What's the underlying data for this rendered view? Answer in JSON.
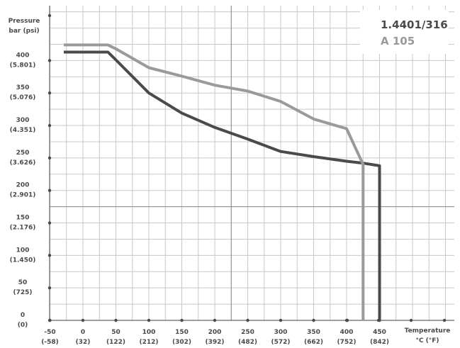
{
  "chart_data": {
    "type": "line",
    "ylabel": [
      "Pressure",
      "bar (psi)"
    ],
    "xlabel": [
      "Temperature",
      "°C (°F)"
    ],
    "xlim": [
      -50,
      450
    ],
    "ylim": [
      0,
      420
    ],
    "x_ticks": [
      {
        "v": -50,
        "l1": "-50",
        "l2": "(-58)"
      },
      {
        "v": 0,
        "l1": "0",
        "l2": "(32)"
      },
      {
        "v": 50,
        "l1": "50",
        "l2": "(122)"
      },
      {
        "v": 100,
        "l1": "100",
        "l2": "(212)"
      },
      {
        "v": 150,
        "l1": "150",
        "l2": "(302)"
      },
      {
        "v": 200,
        "l1": "200",
        "l2": "(392)"
      },
      {
        "v": 250,
        "l1": "250",
        "l2": "(482)"
      },
      {
        "v": 300,
        "l1": "300",
        "l2": "(572)"
      },
      {
        "v": 350,
        "l1": "350",
        "l2": "(662)"
      },
      {
        "v": 400,
        "l1": "400",
        "l2": "(752)"
      },
      {
        "v": 450,
        "l1": "450",
        "l2": "(842)"
      }
    ],
    "y_ticks": [
      {
        "v": 0,
        "l1": "0",
        "l2": "(0)"
      },
      {
        "v": 50,
        "l1": "50",
        "l2": "(725)"
      },
      {
        "v": 100,
        "l1": "100",
        "l2": "(1.450)"
      },
      {
        "v": 150,
        "l1": "150",
        "l2": "(2.176)"
      },
      {
        "v": 200,
        "l1": "200",
        "l2": "(2.901)"
      },
      {
        "v": 250,
        "l1": "250",
        "l2": "(3.626)"
      },
      {
        "v": 300,
        "l1": "300",
        "l2": "(4.351)"
      },
      {
        "v": 350,
        "l1": "350",
        "l2": "(5.076)"
      },
      {
        "v": 400,
        "l1": "400",
        "l2": "(5.801)"
      }
    ],
    "series": [
      {
        "name": "1.4401/316",
        "color": "#4a4a4a",
        "x": [
          -29,
          38,
          50,
          100,
          150,
          200,
          250,
          300,
          350,
          400,
          425,
          450,
          450
        ],
        "y": [
          413,
          413,
          401,
          350,
          319,
          297,
          279,
          260,
          252,
          245,
          242,
          238,
          0
        ]
      },
      {
        "name": "A 105",
        "color": "#9a9a9a",
        "x": [
          -29,
          38,
          50,
          100,
          150,
          200,
          250,
          300,
          350,
          400,
          425,
          425
        ],
        "y": [
          424,
          424,
          418,
          389,
          376,
          362,
          353,
          337,
          310,
          295,
          240,
          0
        ]
      }
    ],
    "grid": true,
    "legend": "top-right"
  }
}
